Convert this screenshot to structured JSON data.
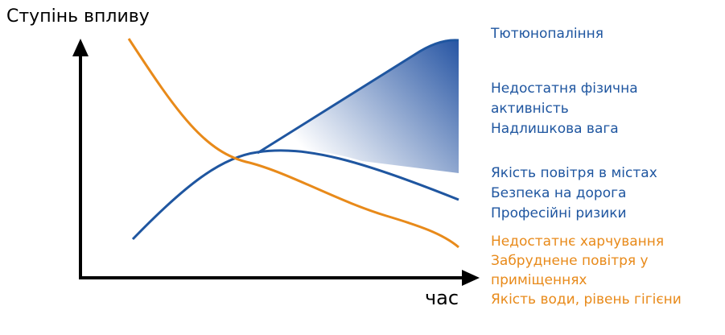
{
  "axes": {
    "y_label": "Ступінь впливу",
    "x_label": "час"
  },
  "groups": [
    {
      "lines": [
        "Тютюнопаління"
      ]
    },
    {
      "lines": [
        "Недостатня фізична",
        "активність",
        "Надлишкова вага"
      ]
    },
    {
      "lines": [
        "Якість повітря в містах",
        "Безпека на дорога",
        "Професійні ризики"
      ]
    },
    {
      "lines": [
        "Недостатнє харчування",
        "Забруднене повітря у",
        "приміщеннях",
        "Якість води, рівень гігієни"
      ]
    }
  ]
}
